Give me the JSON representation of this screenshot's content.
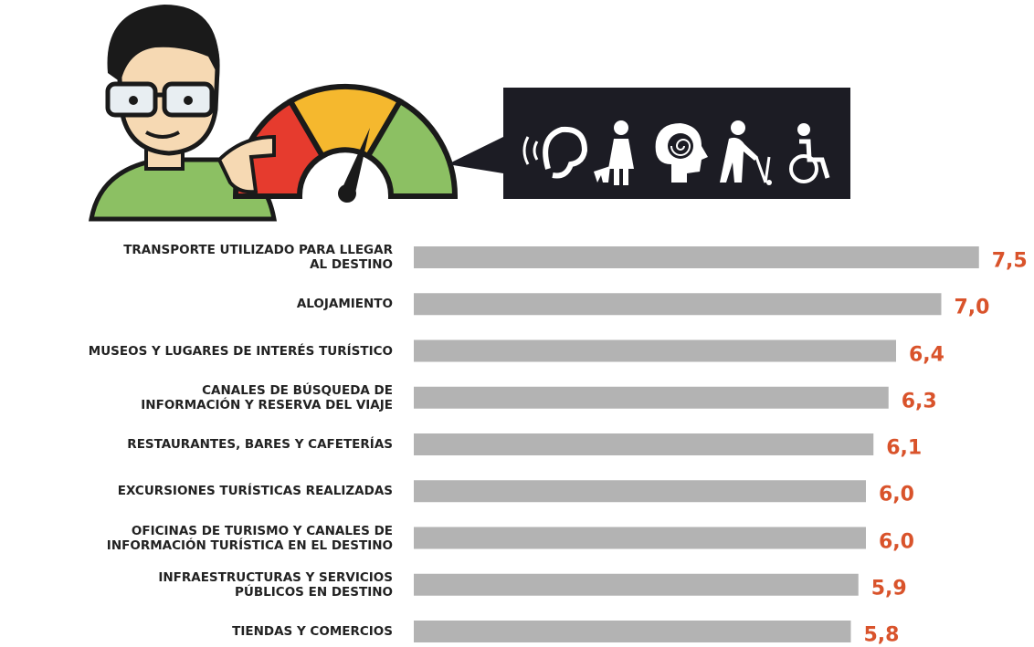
{
  "chart_data": {
    "type": "bar",
    "orientation": "horizontal",
    "categories": [
      "TRANSPORTE UTILIZADO PARA LLEGAR\nAL DESTINO",
      "ALOJAMIENTO",
      "MUSEOS Y LUGARES DE INTERÉS TURÍSTICO",
      "CANALES DE BÚSQUEDA DE\nINFORMACIÓN Y RESERVA DEL VIAJE",
      "RESTAURANTES, BARES Y CAFETERÍAS",
      "EXCURSIONES TURÍSTICAS REALIZADAS",
      "OFICINAS DE TURISMO Y CANALES DE\nINFORMACIÓN TURÍSTICA EN EL DESTINO",
      "INFRAESTRUCTURAS Y SERVICIOS\nPÚBLICOS EN DESTINO",
      "TIENDAS Y COMERCIOS"
    ],
    "values": [
      7.5,
      7.0,
      6.4,
      6.3,
      6.1,
      6.0,
      6.0,
      5.9,
      5.8
    ],
    "value_labels": [
      "7,5",
      "7,0",
      "6,4",
      "6,3",
      "6,1",
      "6,0",
      "6,0",
      "5,9",
      "5,8"
    ],
    "color": "#b3b3b3",
    "label_color": "#d9532b"
  }
}
